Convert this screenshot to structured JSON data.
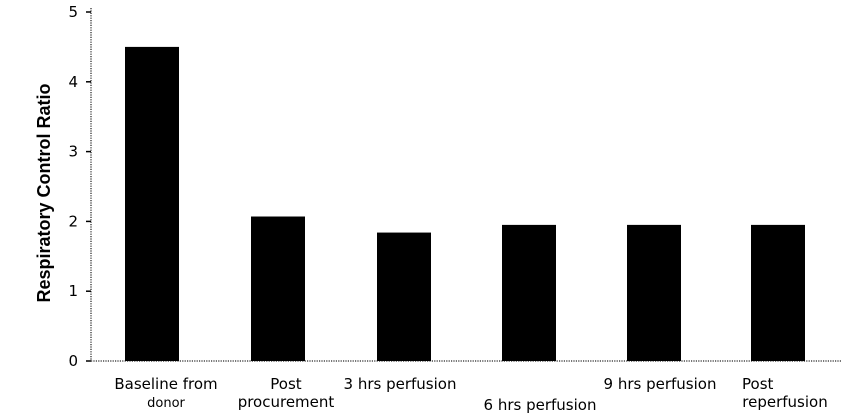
{
  "chart_data": {
    "type": "bar",
    "title": "",
    "xlabel": "",
    "ylabel": "Respiratory Control Ratio",
    "ylim": [
      0,
      5
    ],
    "yticks": [
      0,
      1,
      2,
      3,
      4,
      5
    ],
    "grid": false,
    "legend": "none",
    "categories": [
      [
        "Baseline from",
        "donor"
      ],
      [
        "Post",
        "procurement"
      ],
      [
        "3 hrs perfusion"
      ],
      [
        "6 hrs perfusion"
      ],
      [
        "9 hrs perfusion"
      ],
      [
        "Post",
        "reperfusion"
      ]
    ],
    "values": [
      4.5,
      2.07,
      1.84,
      1.95,
      1.95,
      1.95
    ],
    "bar_color": "#000000"
  }
}
